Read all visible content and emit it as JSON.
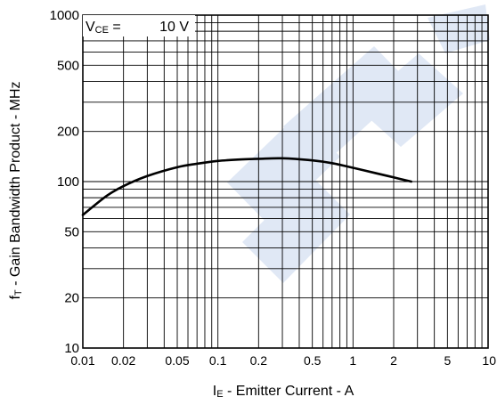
{
  "chart_data": {
    "type": "line",
    "title": "",
    "x_scale": "log",
    "y_scale": "log",
    "xlim": [
      0.01,
      10
    ],
    "ylim": [
      10,
      1000
    ],
    "grid": true,
    "xticks": [
      0.01,
      0.02,
      0.05,
      0.1,
      0.2,
      0.5,
      1,
      2,
      5,
      10
    ],
    "xtick_labels": [
      "0.01",
      "0.02",
      "0.05",
      "0.1",
      "0.2",
      "0.5",
      "1",
      "2",
      "5",
      "10"
    ],
    "yticks": [
      10,
      20,
      50,
      100,
      200,
      500,
      1000
    ],
    "ytick_labels": [
      "10",
      "20",
      "50",
      "100",
      "200",
      "500",
      "1000"
    ],
    "xlabel": {
      "main": "I",
      "sub": "E",
      "rest": " - Emitter Current - A"
    },
    "ylabel": {
      "main": "f",
      "sub": "T",
      "rest": " - Gain Bandwidth Product - MHz"
    },
    "annotation": {
      "main": "V",
      "sub": "CE",
      "rest": " =",
      "value": "10 V"
    },
    "series": [
      {
        "x": [
          0.01,
          0.015,
          0.02,
          0.03,
          0.05,
          0.07,
          0.1,
          0.15,
          0.2,
          0.3,
          0.5,
          0.7,
          1.0,
          1.5,
          2.0,
          2.7
        ],
        "y": [
          63,
          82,
          94,
          108,
          122,
          128,
          133,
          136,
          137,
          138,
          134,
          129,
          121,
          112,
          106,
          100
        ]
      }
    ],
    "colors": {
      "line": "#000000",
      "grid": "#000000",
      "watermark": "#dde6f4"
    }
  }
}
